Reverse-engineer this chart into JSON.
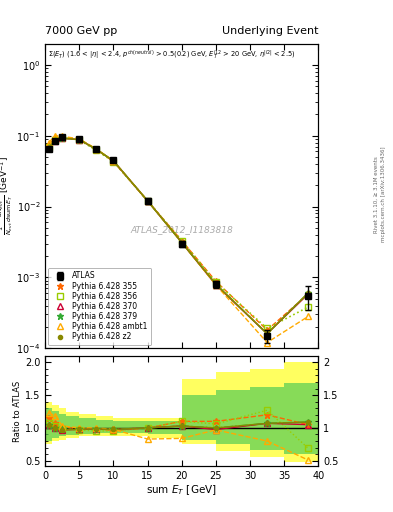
{
  "title_left": "7000 GeV pp",
  "title_right": "Underlying Event",
  "annotation": "ATLAS_2012_I1183818",
  "ylabel_main": "$\\frac{1}{N_{evt}}\\frac{dN_{evt}}{d\\mathrm{sum}\\,E_T}$ [GeV$^{-1}$]",
  "ylabel_ratio": "Ratio to ATLAS",
  "xlabel": "sum $E_T$ [GeV]",
  "xlim": [
    0,
    40
  ],
  "ylim_main": [
    0.0001,
    2.0
  ],
  "ylim_ratio": [
    0.42,
    2.1
  ],
  "right_label": "Rivet 3.1.10, ≥ 3.1M events",
  "right_label2": "mcplots.cern.ch [arXiv:1306.3436]",
  "atlas_x": [
    0.5,
    1.5,
    2.5,
    5.0,
    7.5,
    10.0,
    15.0,
    20.0,
    25.0,
    32.5,
    38.5
  ],
  "atlas_y": [
    0.065,
    0.085,
    0.095,
    0.09,
    0.065,
    0.045,
    0.012,
    0.003,
    0.0008,
    0.00015,
    0.00055
  ],
  "atlas_yerr": [
    0.004,
    0.004,
    0.004,
    0.003,
    0.003,
    0.002,
    0.001,
    0.0003,
    0.0001,
    3e-05,
    0.0002
  ],
  "py355_x": [
    0.5,
    1.5,
    2.5,
    5.0,
    7.5,
    10.0,
    15.0,
    20.0,
    25.0,
    32.5,
    38.5
  ],
  "py355_y": [
    0.075,
    0.092,
    0.096,
    0.089,
    0.064,
    0.043,
    0.012,
    0.0033,
    0.00088,
    0.00018,
    0.00058
  ],
  "py355_ratio": [
    1.15,
    1.08,
    1.01,
    0.99,
    0.985,
    0.96,
    1.0,
    1.1,
    1.1,
    1.2,
    1.05
  ],
  "py356_x": [
    0.5,
    1.5,
    2.5,
    5.0,
    7.5,
    10.0,
    15.0,
    20.0,
    25.0,
    32.5,
    38.5
  ],
  "py356_y": [
    0.07,
    0.088,
    0.094,
    0.087,
    0.062,
    0.043,
    0.012,
    0.0033,
    0.00085,
    0.00019,
    0.00038
  ],
  "py356_ratio": [
    1.08,
    1.035,
    0.99,
    0.967,
    0.954,
    0.955,
    1.0,
    1.1,
    1.06,
    1.27,
    0.69
  ],
  "py370_x": [
    0.5,
    1.5,
    2.5,
    5.0,
    7.5,
    10.0,
    15.0,
    20.0,
    25.0,
    32.5,
    38.5
  ],
  "py370_y": [
    0.068,
    0.085,
    0.092,
    0.088,
    0.064,
    0.044,
    0.012,
    0.0031,
    0.00078,
    0.00016,
    0.00058
  ],
  "py370_ratio": [
    1.05,
    1.0,
    0.97,
    0.978,
    0.985,
    0.978,
    1.0,
    1.03,
    0.975,
    1.07,
    1.05
  ],
  "py379_x": [
    0.5,
    1.5,
    2.5,
    5.0,
    7.5,
    10.0,
    15.0,
    20.0,
    25.0,
    32.5,
    38.5
  ],
  "py379_y": [
    0.068,
    0.085,
    0.093,
    0.088,
    0.064,
    0.044,
    0.012,
    0.0031,
    0.0008,
    0.00016,
    0.0006
  ],
  "py379_ratio": [
    1.05,
    1.0,
    0.978,
    0.978,
    0.985,
    0.978,
    1.0,
    1.03,
    1.0,
    1.07,
    1.09
  ],
  "pyambt1_x": [
    0.5,
    1.5,
    2.5,
    5.0,
    7.5,
    10.0,
    15.0,
    20.0,
    25.0,
    32.5,
    38.5
  ],
  "pyambt1_y": [
    0.08,
    0.1,
    0.098,
    0.09,
    0.065,
    0.044,
    0.012,
    0.0031,
    0.00078,
    0.00012,
    0.00028
  ],
  "pyambt1_ratio": [
    1.23,
    1.18,
    1.03,
    1.0,
    1.0,
    0.978,
    0.83,
    0.84,
    0.97,
    0.8,
    0.51
  ],
  "pyz2_x": [
    0.5,
    1.5,
    2.5,
    5.0,
    7.5,
    10.0,
    15.0,
    20.0,
    25.0,
    32.5,
    38.5
  ],
  "pyz2_y": [
    0.068,
    0.085,
    0.092,
    0.088,
    0.064,
    0.044,
    0.012,
    0.0031,
    0.0008,
    0.00016,
    0.0006
  ],
  "pyz2_ratio": [
    1.05,
    1.0,
    0.97,
    0.978,
    0.985,
    0.978,
    1.0,
    1.03,
    1.0,
    1.07,
    1.09
  ],
  "band_yellow_edges": [
    0,
    1,
    2,
    3,
    5,
    7.5,
    10,
    15,
    20,
    25,
    30,
    35,
    40
  ],
  "band_yellow_lo": [
    0.75,
    0.8,
    0.82,
    0.85,
    0.87,
    0.88,
    0.88,
    0.85,
    0.75,
    0.65,
    0.55,
    0.48,
    0.45
  ],
  "band_yellow_hi": [
    1.4,
    1.35,
    1.3,
    1.25,
    1.22,
    1.18,
    1.15,
    1.15,
    1.75,
    1.85,
    1.9,
    2.0,
    2.0
  ],
  "band_green_edges": [
    0,
    1,
    2,
    3,
    5,
    7.5,
    10,
    15,
    20,
    25,
    30,
    35,
    40
  ],
  "band_green_lo": [
    0.8,
    0.85,
    0.87,
    0.89,
    0.91,
    0.92,
    0.92,
    0.9,
    0.82,
    0.75,
    0.67,
    0.6,
    0.58
  ],
  "band_green_hi": [
    1.3,
    1.26,
    1.22,
    1.18,
    1.15,
    1.12,
    1.1,
    1.1,
    1.5,
    1.58,
    1.63,
    1.68,
    1.68
  ],
  "colors": {
    "atlas": "#000000",
    "py355": "#FF6600",
    "py356": "#99CC00",
    "py370": "#CC0033",
    "py379": "#33AA33",
    "pyambt1": "#FFAA00",
    "pyz2": "#888800"
  },
  "legend_entries": [
    "ATLAS",
    "Pythia 6.428 355",
    "Pythia 6.428 356",
    "Pythia 6.428 370",
    "Pythia 6.428 379",
    "Pythia 6.428 ambt1",
    "Pythia 6.428 z2"
  ]
}
